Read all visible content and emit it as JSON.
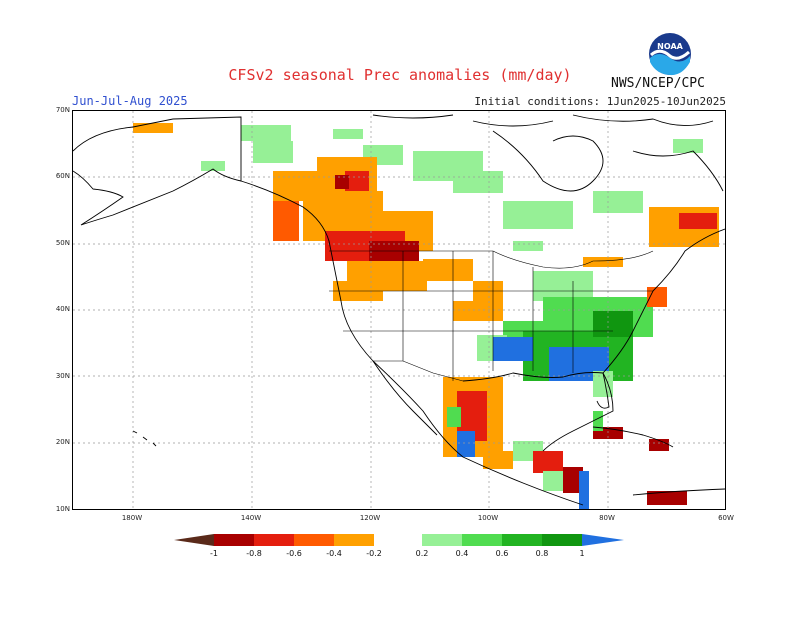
{
  "title": "CFSv2 seasonal Prec anomalies (mm/day)",
  "season": "Jun-Jul-Aug 2025",
  "initial_conditions": "Initial conditions: 1Jun2025-10Jun2025",
  "agency": "NWS/NCEP/CPC",
  "logo_text": "NOAA",
  "lat_labels": [
    "70N",
    "60N",
    "50N",
    "40N",
    "30N",
    "20N",
    "10N"
  ],
  "lon_labels": [
    "180W",
    "140W",
    "120W",
    "100W",
    "80W",
    "60W"
  ],
  "legend_labels": [
    "-1",
    "-0.8",
    "-0.6",
    "-0.4",
    "-0.2",
    "0.2",
    "0.4",
    "0.6",
    "0.8",
    "1"
  ],
  "colors": {
    "dry_extreme": "#5a2a1a",
    "dry_1": "#a80000",
    "dry_2": "#e41e0e",
    "dry_3": "#ff5a00",
    "dry_4": "#ffa000",
    "wet_1": "#96f096",
    "wet_2": "#50dc50",
    "wet_3": "#22b422",
    "wet_4": "#109610",
    "wet_extreme": "#2070e0"
  }
}
